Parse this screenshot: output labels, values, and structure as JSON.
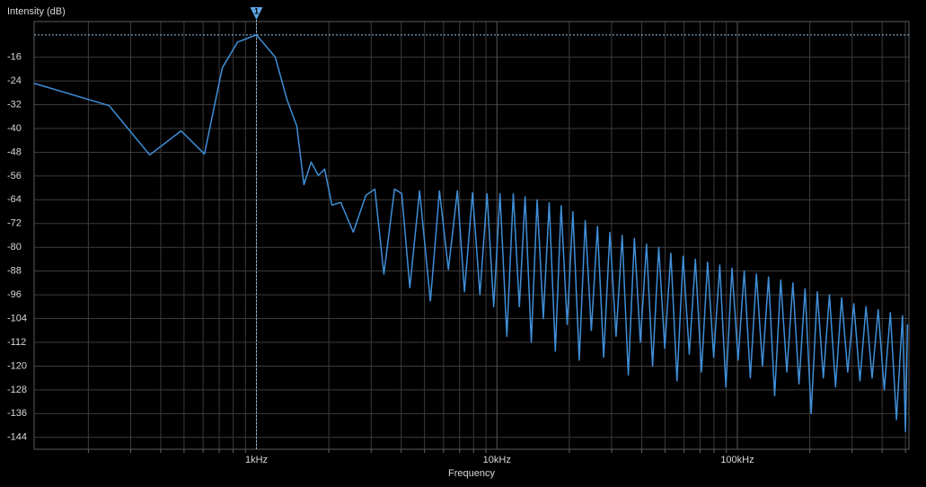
{
  "chart_data": {
    "type": "line",
    "y_label": "Intensity (dB)",
    "x_label": "Frequency",
    "log_x": true,
    "grid": true,
    "color": "#3f8fd8",
    "xlim": [
      119,
      517000
    ],
    "ylim": [
      -148,
      -4
    ],
    "xticks": [
      {
        "value": 1000,
        "label": "1kHz"
      },
      {
        "value": 10000,
        "label": "10kHz"
      },
      {
        "value": 100000,
        "label": "100kHz"
      }
    ],
    "xminor_ticks": [
      200,
      300,
      400,
      500,
      600,
      700,
      800,
      900,
      2000,
      3000,
      4000,
      5000,
      6000,
      7000,
      8000,
      9000,
      20000,
      30000,
      40000,
      50000,
      60000,
      70000,
      80000,
      90000,
      200000,
      300000,
      400000,
      500000
    ],
    "yticks": [
      -16,
      -24,
      -32,
      -40,
      -48,
      -56,
      -64,
      -72,
      -80,
      -88,
      -96,
      -104,
      -112,
      -120,
      -128,
      -136,
      -144
    ],
    "marker": {
      "label": "1",
      "x": 1000,
      "y": -8.5
    },
    "x": [
      119,
      244,
      360,
      486,
      608,
      721,
      835,
      1000,
      1198,
      1339,
      1472,
      1576,
      1689,
      1809,
      1922,
      2060,
      2243,
      2528,
      2852,
      3108,
      3388,
      3752,
      4021,
      4344,
      4770,
      5290,
      5770,
      6285,
      6850,
      7330,
      7920,
      8500,
      9100,
      9700,
      10300,
      11000,
      11700,
      12400,
      13100,
      13900,
      14700,
      15600,
      16500,
      17500,
      18500,
      19600,
      20700,
      22000,
      23300,
      24700,
      26200,
      27800,
      29500,
      31300,
      33200,
      35200,
      37300,
      39500,
      41900,
      44400,
      47100,
      49900,
      52900,
      56100,
      59500,
      63100,
      66900,
      70900,
      75200,
      79700,
      84500,
      89600,
      95000,
      100700,
      106800,
      113200,
      120000,
      127200,
      134800,
      142900,
      151500,
      160600,
      170200,
      180400,
      191200,
      202700,
      214900,
      227800,
      241500,
      256000,
      271400,
      287700,
      305000,
      323300,
      342700,
      363300,
      385100,
      408200,
      432700,
      458700,
      486200,
      500000,
      510000
    ],
    "values": [
      -24.8,
      -32.3,
      -48.9,
      -40.8,
      -48.6,
      -19.6,
      -10.9,
      -8.5,
      -16,
      -30.2,
      -39.2,
      -58.9,
      -51.3,
      -55.8,
      -53.7,
      -65.8,
      -64.9,
      -74.9,
      -62.5,
      -60.4,
      -89,
      -60.4,
      -61.9,
      -93.6,
      -61,
      -98.1,
      -61,
      -87.5,
      -61,
      -95,
      -61.6,
      -96,
      -62,
      -100,
      -62,
      -110,
      -62,
      -100,
      -63,
      -112,
      -64,
      -104,
      -65,
      -115,
      -66,
      -106,
      -68,
      -118,
      -71,
      -108,
      -73,
      -117,
      -75,
      -110,
      -76,
      -123,
      -77,
      -112,
      -79,
      -120,
      -80,
      -114,
      -82,
      -125,
      -83,
      -116,
      -84,
      -122,
      -85,
      -117,
      -86,
      -127,
      -87,
      -118,
      -88,
      -124,
      -89,
      -120,
      -90,
      -130,
      -91,
      -122,
      -92,
      -126,
      -94,
      -136,
      -95,
      -124,
      -96,
      -127,
      -97,
      -122,
      -99,
      -125,
      -100,
      -124,
      -101,
      -128,
      -102,
      -138,
      -103,
      -142,
      -106
    ]
  }
}
